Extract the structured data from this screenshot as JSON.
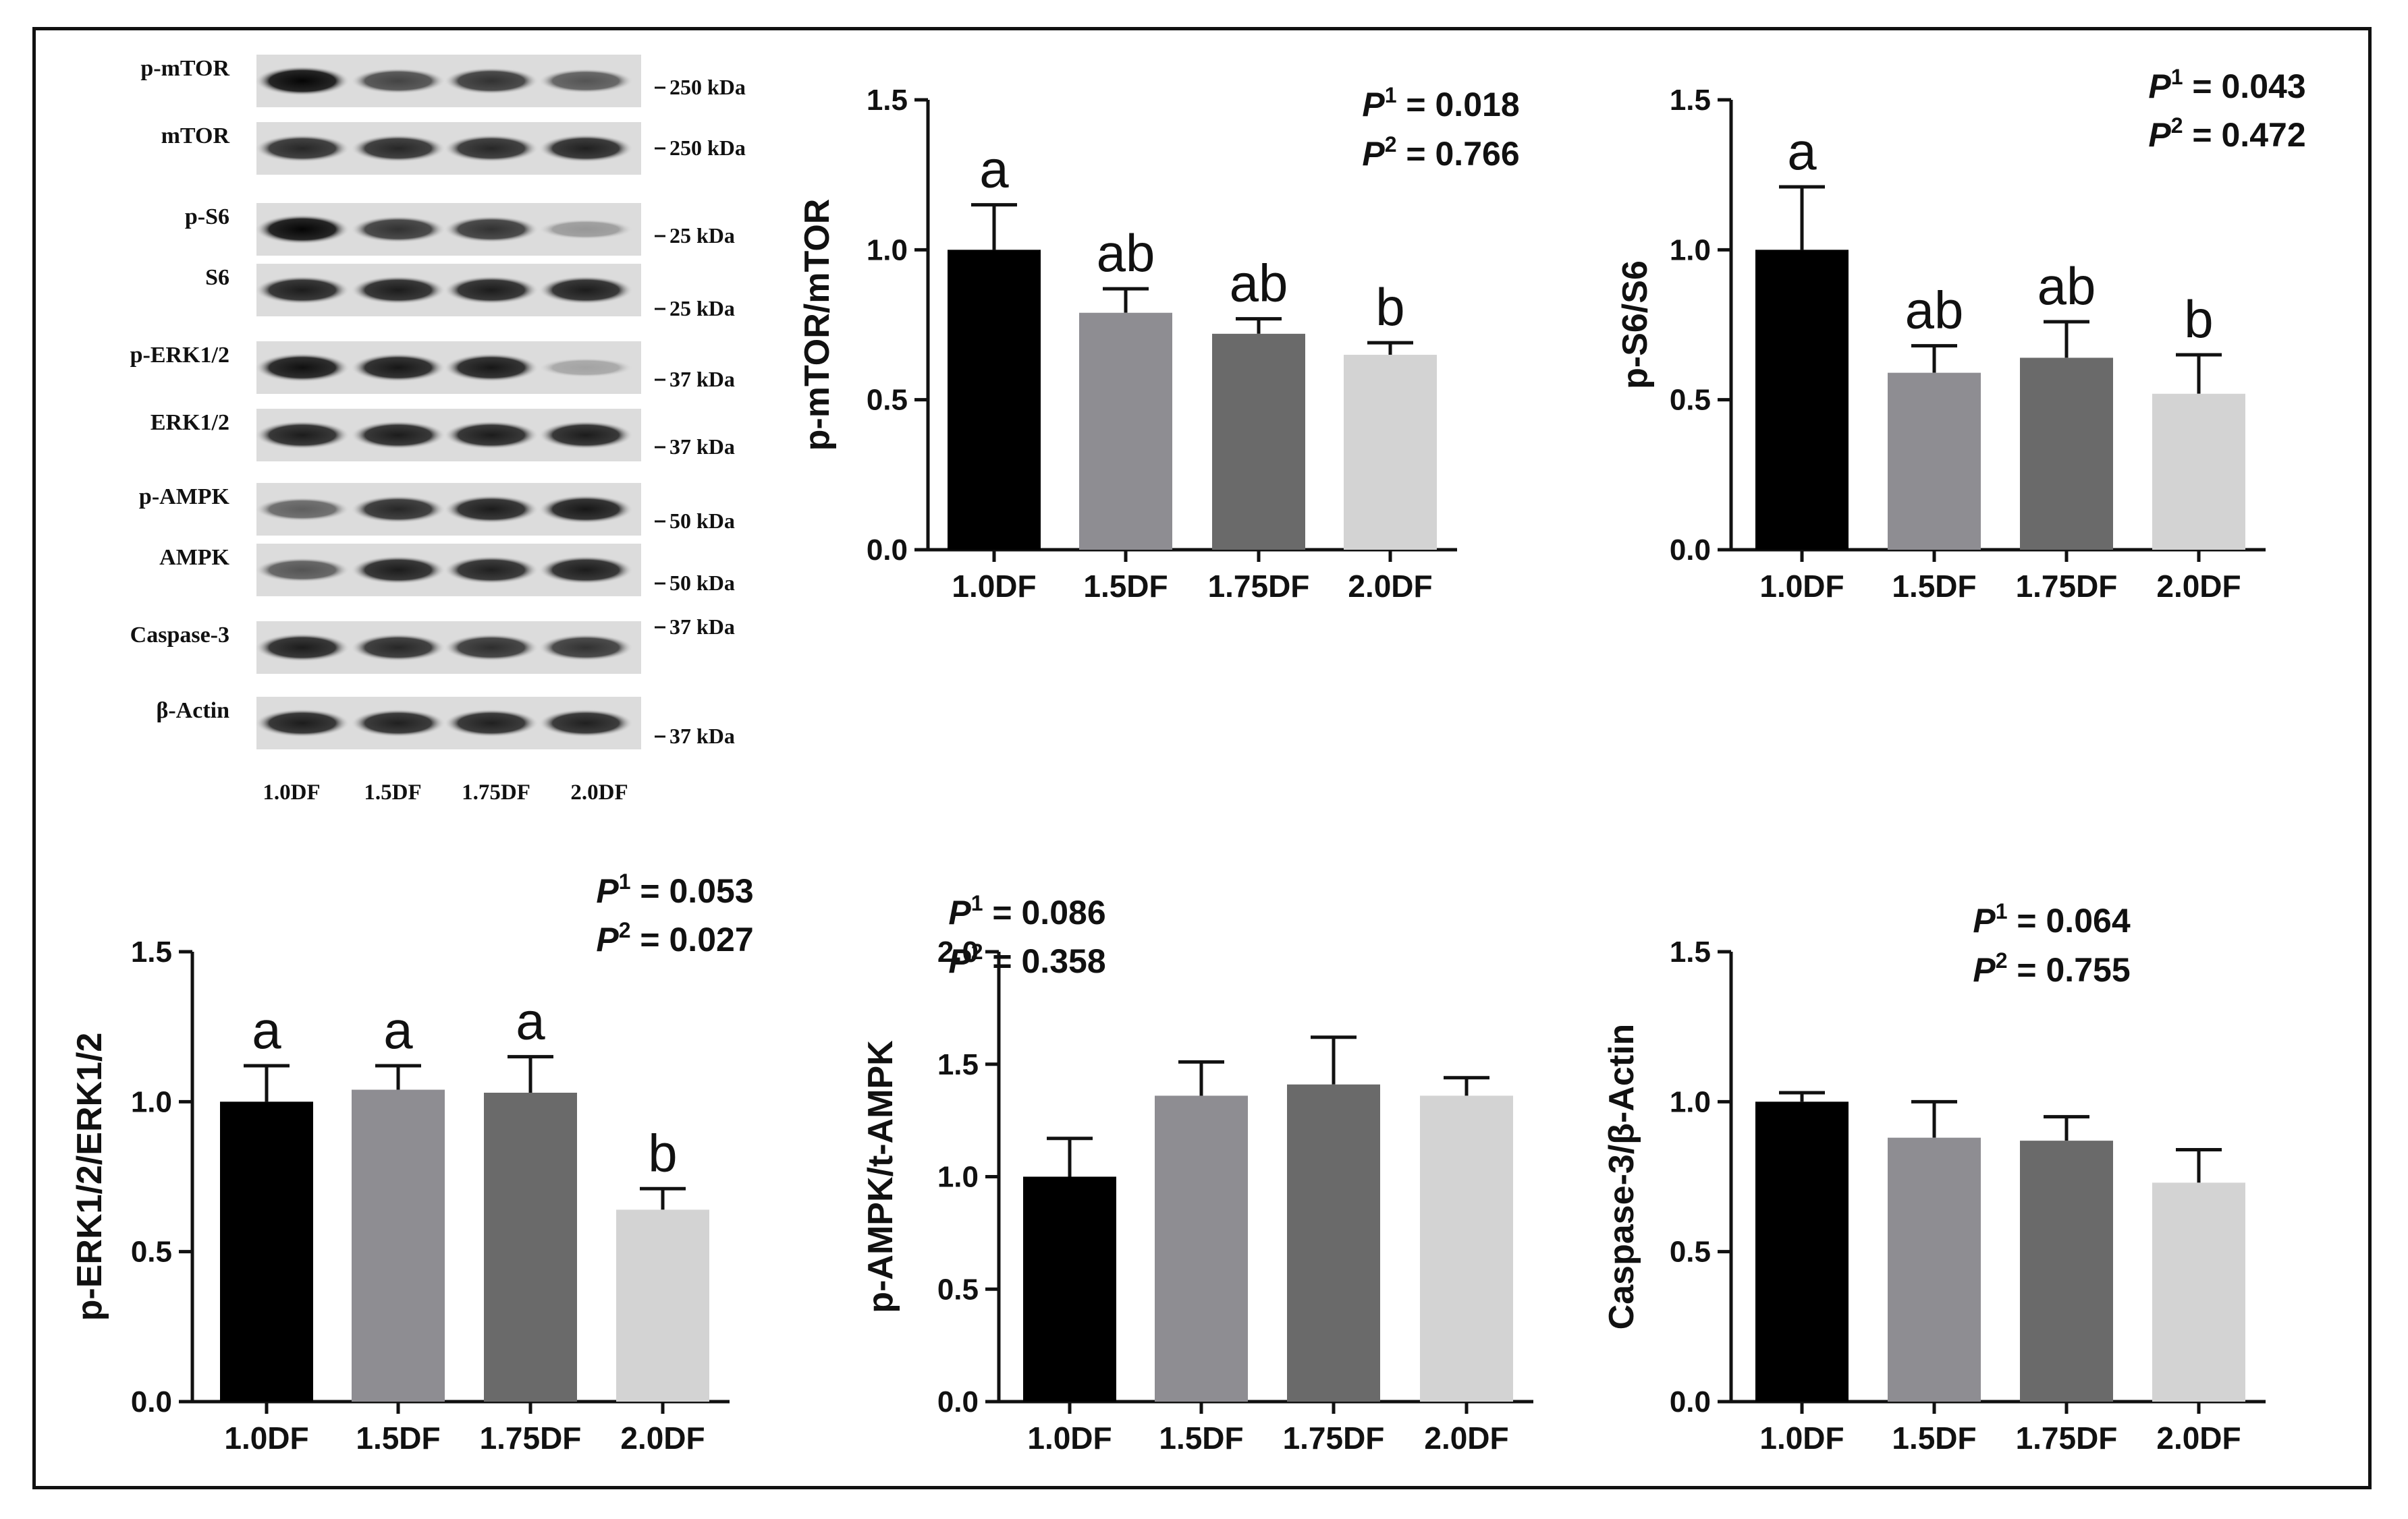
{
  "blot": {
    "bands": [
      {
        "label": "p-mTOR",
        "kda": "250 kDa",
        "intensity": [
          1.0,
          0.72,
          0.8,
          0.65
        ]
      },
      {
        "label": "mTOR",
        "kda": "250 kDa",
        "intensity": [
          0.85,
          0.85,
          0.85,
          0.88
        ]
      },
      {
        "label": "p-S6",
        "kda": "25 kDa",
        "intensity": [
          1.0,
          0.8,
          0.8,
          0.35
        ]
      },
      {
        "label": "S6",
        "kda": "25 kDa",
        "intensity": [
          0.9,
          0.9,
          0.9,
          0.9
        ]
      },
      {
        "label": "p-ERK1/2",
        "kda": "37 kDa",
        "intensity": [
          0.95,
          0.92,
          0.92,
          0.3
        ]
      },
      {
        "label": "ERK1/2",
        "kda": "37 kDa",
        "intensity": [
          0.9,
          0.9,
          0.9,
          0.9
        ]
      },
      {
        "label": "p-AMPK",
        "kda": "50 kDa",
        "intensity": [
          0.6,
          0.85,
          0.9,
          0.92
        ]
      },
      {
        "label": "AMPK",
        "kda": "50 kDa",
        "intensity": [
          0.65,
          0.9,
          0.88,
          0.9
        ]
      },
      {
        "label": "Caspase-3",
        "kda": "37 kDa",
        "intensity": [
          0.9,
          0.85,
          0.82,
          0.8
        ]
      },
      {
        "label": "β-Actin",
        "kda": "37 kDa",
        "intensity": [
          0.9,
          0.88,
          0.88,
          0.88
        ]
      }
    ],
    "lanes": [
      "1.0DF",
      "1.5DF",
      "1.75DF",
      "2.0DF"
    ]
  },
  "chart_data": [
    {
      "type": "bar",
      "ylabel": "p-mTOR/mTOR",
      "categories": [
        "1.0DF",
        "1.5DF",
        "1.75DF",
        "2.0DF"
      ],
      "values": [
        1.0,
        0.79,
        0.72,
        0.65
      ],
      "errors": [
        0.15,
        0.08,
        0.05,
        0.04
      ],
      "letters": [
        "a",
        "ab",
        "ab",
        "b"
      ],
      "ylim": [
        0,
        1.5
      ],
      "yticks": [
        "0.0",
        "0.5",
        "1.0",
        "1.5"
      ],
      "p1": "0.018",
      "p2": "0.766"
    },
    {
      "type": "bar",
      "ylabel": "p-S6/S6",
      "categories": [
        "1.0DF",
        "1.5DF",
        "1.75DF",
        "2.0DF"
      ],
      "values": [
        1.0,
        0.59,
        0.64,
        0.52
      ],
      "errors": [
        0.21,
        0.09,
        0.12,
        0.13
      ],
      "letters": [
        "a",
        "ab",
        "ab",
        "b"
      ],
      "ylim": [
        0,
        1.5
      ],
      "yticks": [
        "0.0",
        "0.5",
        "1.0",
        "1.5"
      ],
      "p1": "0.043",
      "p2": "0.472"
    },
    {
      "type": "bar",
      "ylabel": "p-ERK1/2/ERK1/2",
      "categories": [
        "1.0DF",
        "1.5DF",
        "1.75DF",
        "2.0DF"
      ],
      "values": [
        1.0,
        1.04,
        1.03,
        0.64
      ],
      "errors": [
        0.12,
        0.08,
        0.12,
        0.07
      ],
      "letters": [
        "a",
        "a",
        "a",
        "b"
      ],
      "ylim": [
        0,
        1.5
      ],
      "yticks": [
        "0.0",
        "0.5",
        "1.0",
        "1.5"
      ],
      "p1": "0.053",
      "p2": "0.027"
    },
    {
      "type": "bar",
      "ylabel": "p-AMPK/t-AMPK",
      "categories": [
        "1.0DF",
        "1.5DF",
        "1.75DF",
        "2.0DF"
      ],
      "values": [
        1.0,
        1.36,
        1.41,
        1.36
      ],
      "errors": [
        0.17,
        0.15,
        0.21,
        0.08
      ],
      "letters": [
        "",
        "",
        "",
        ""
      ],
      "ylim": [
        0,
        2.0
      ],
      "yticks": [
        "0.0",
        "0.5",
        "1.0",
        "1.5",
        "2.0"
      ],
      "p1": "0.086",
      "p2": "0.358"
    },
    {
      "type": "bar",
      "ylabel": "Caspase-3/β-Actin",
      "categories": [
        "1.0DF",
        "1.5DF",
        "1.75DF",
        "2.0DF"
      ],
      "values": [
        1.0,
        0.88,
        0.87,
        0.73
      ],
      "errors": [
        0.03,
        0.12,
        0.08,
        0.11
      ],
      "letters": [
        "",
        "",
        "",
        ""
      ],
      "ylim": [
        0,
        1.5
      ],
      "yticks": [
        "0.0",
        "0.5",
        "1.0",
        "1.5"
      ],
      "p1": "0.064",
      "p2": "0.755"
    }
  ],
  "colors": {
    "bars": [
      "#000000",
      "#8e8d92",
      "#6a6a6a",
      "#d3d3d3"
    ],
    "ink": "#111111"
  }
}
